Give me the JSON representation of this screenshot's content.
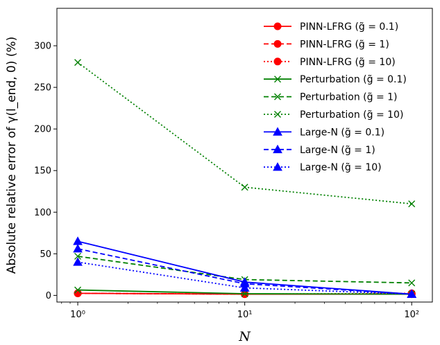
{
  "chart_data": {
    "type": "line",
    "x_scale": "log",
    "xlabel": "N",
    "ylabel": "Absolute relative error of γ(l_end, 0) (%)",
    "xlim": [
      0.75,
      133
    ],
    "ylim": [
      -8,
      345
    ],
    "x_ticks": [
      1,
      10,
      100
    ],
    "x_tick_labels": [
      "10⁰",
      "10¹",
      "10²"
    ],
    "y_ticks": [
      0,
      50,
      100,
      150,
      200,
      250,
      300
    ],
    "grid": false,
    "legend_position": "top-right",
    "x": [
      1,
      10,
      100
    ],
    "series": [
      {
        "name": "PINN-LFRG (g̃ = 0.1)",
        "color": "#ff0000",
        "dash": "solid",
        "marker": "circle",
        "values": [
          2.5,
          1.5,
          1.5
        ]
      },
      {
        "name": "PINN-LFRG (g̃ = 1)",
        "color": "#ff0000",
        "dash": "dashed",
        "marker": "circle",
        "values": [
          2.5,
          1.5,
          1.5
        ]
      },
      {
        "name": "PINN-LFRG (g̃ = 10)",
        "color": "#ff0000",
        "dash": "dotted",
        "marker": "circle",
        "values": [
          2.5,
          1.5,
          2.5
        ]
      },
      {
        "name": "Perturbation (g̃ = 0.1)",
        "color": "#008000",
        "dash": "solid",
        "marker": "x",
        "values": [
          6.5,
          2,
          1.5
        ]
      },
      {
        "name": "Perturbation (g̃ = 1)",
        "color": "#008000",
        "dash": "dashed",
        "marker": "x",
        "values": [
          47,
          19,
          15
        ]
      },
      {
        "name": "Perturbation (g̃ = 10)",
        "color": "#008000",
        "dash": "dotted",
        "marker": "x",
        "values": [
          280,
          130,
          110
        ]
      },
      {
        "name": "Large-N (g̃ = 0.1)",
        "color": "#0000ff",
        "dash": "solid",
        "marker": "triangle",
        "values": [
          65,
          16,
          1.5
        ]
      },
      {
        "name": "Large-N (g̃ = 1)",
        "color": "#0000ff",
        "dash": "dashed",
        "marker": "triangle",
        "values": [
          56,
          14,
          1.5
        ]
      },
      {
        "name": "Large-N (g̃ = 10)",
        "color": "#0000ff",
        "dash": "dotted",
        "marker": "triangle",
        "values": [
          40,
          9,
          1.5
        ]
      }
    ]
  }
}
